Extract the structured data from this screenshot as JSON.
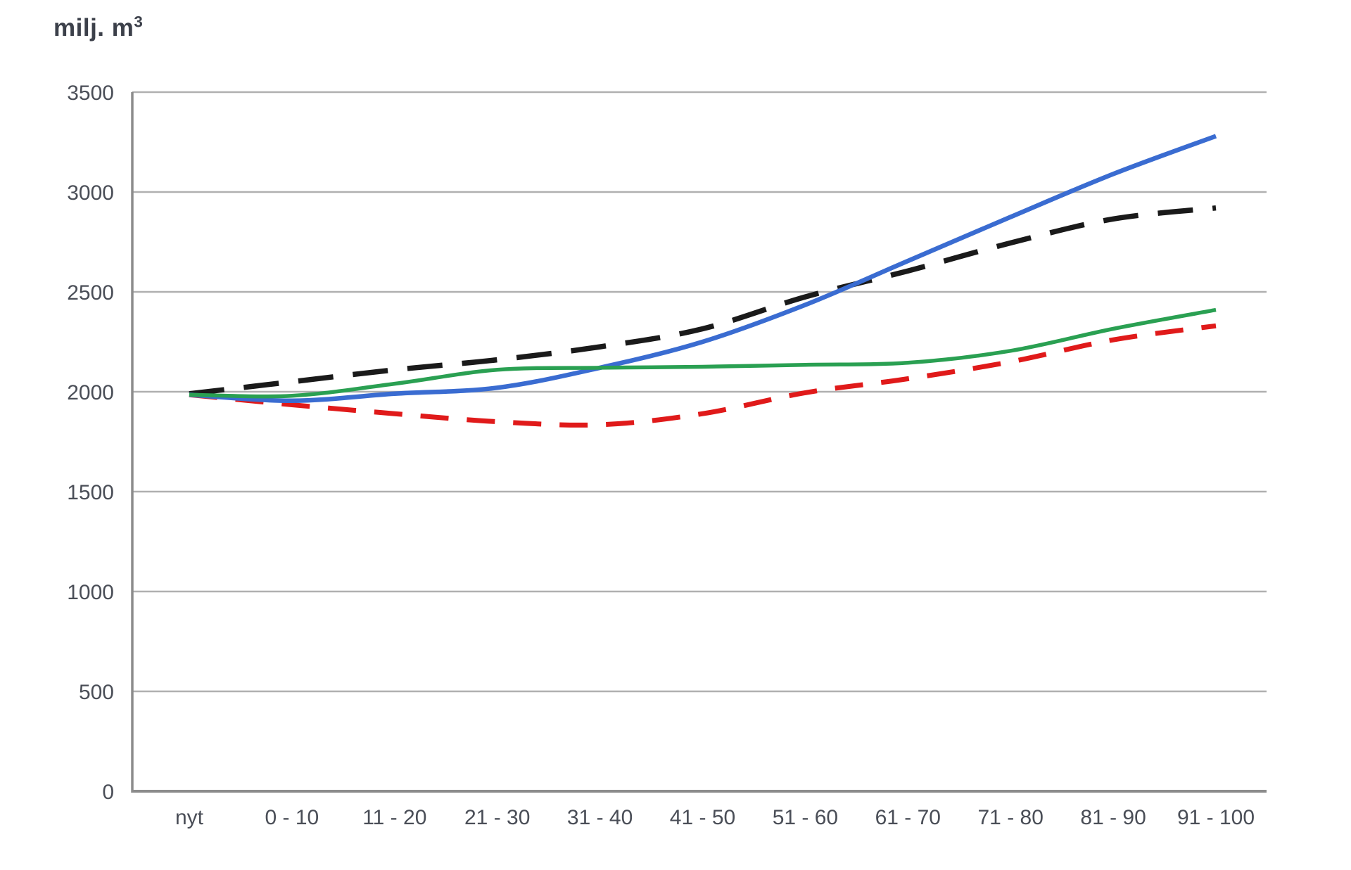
{
  "chart_data": {
    "type": "line",
    "title": {
      "text": "milj. m",
      "superscript": "3"
    },
    "categories": [
      "nyt",
      "0 - 10",
      "11 - 20",
      "21 - 30",
      "31 - 40",
      "41 - 50",
      "51 - 60",
      "61 - 70",
      "71 - 80",
      "81 - 90",
      "91 - 100"
    ],
    "series": [
      {
        "name": "red-dashed",
        "color": "#e01a1a",
        "style": "dashed",
        "dash": "40 26",
        "width": 7,
        "values": [
          1985,
          1935,
          1890,
          1850,
          1835,
          1890,
          1995,
          2065,
          2150,
          2260,
          2330
        ]
      },
      {
        "name": "black-dashed",
        "color": "#1a1a1a",
        "style": "dashed",
        "dash": "50 28",
        "width": 7.5,
        "values": [
          1990,
          2050,
          2110,
          2160,
          2225,
          2315,
          2475,
          2605,
          2745,
          2865,
          2920
        ]
      },
      {
        "name": "blue-solid",
        "color": "#3a6cd1",
        "style": "solid",
        "width": 6.5,
        "values": [
          1985,
          1955,
          1990,
          2020,
          2120,
          2250,
          2435,
          2655,
          2875,
          3090,
          3280
        ]
      },
      {
        "name": "green-solid",
        "color": "#2aa052",
        "style": "solid",
        "width": 5.5,
        "values": [
          1985,
          1980,
          2040,
          2110,
          2120,
          2125,
          2135,
          2145,
          2205,
          2315,
          2410
        ]
      }
    ],
    "ylim": [
      0,
      3500
    ],
    "ytick_step": 500,
    "ytick_labels": [
      "0",
      "500",
      "1000",
      "1500",
      "2000",
      "2500",
      "3000",
      "3500"
    ],
    "grid": "horizontal",
    "legend": "none",
    "axis_color": "#8c8c8c",
    "grid_color": "#b0b0b0",
    "label_color": "#4a4e57"
  }
}
